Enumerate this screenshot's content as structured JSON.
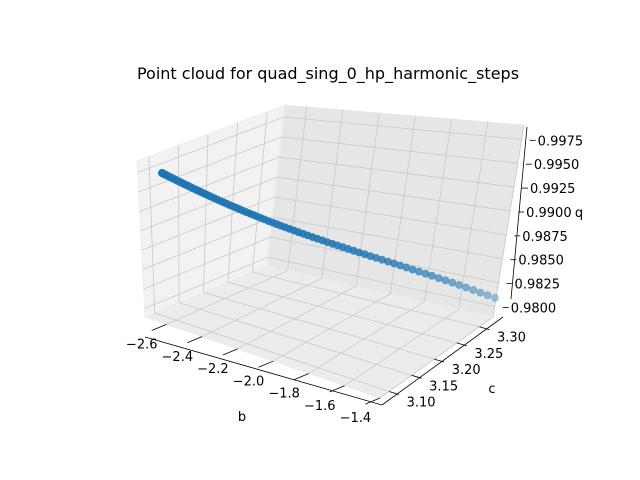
{
  "chart_data": {
    "type": "scatter",
    "projection": "3d",
    "title": "Point cloud for quad_sing_0_hp_harmonic_steps",
    "xlabel": "b",
    "ylabel": "c",
    "zlabel": "q",
    "x_ticks": [
      "−2.6",
      "−2.4",
      "−2.2",
      "−2.0",
      "−1.8",
      "−1.6",
      "−1.4"
    ],
    "y_ticks": [
      "3.10",
      "3.15",
      "3.20",
      "3.25",
      "3.30"
    ],
    "z_ticks": [
      "0.9800",
      "0.9825",
      "0.9850",
      "0.9875",
      "0.9900",
      "0.9925",
      "0.9950",
      "0.9975"
    ],
    "xlim": [
      -2.72,
      -1.4
    ],
    "ylim": [
      3.08,
      3.33
    ],
    "zlim": [
      0.9789,
      0.999
    ],
    "grid": true,
    "marker_color": "#1f77b4",
    "series": [
      {
        "points_start": {
          "b": -2.7,
          "c": 3.09,
          "q": 0.999
        },
        "points_end": {
          "b": -1.46,
          "c": 3.32,
          "q": 0.979
        },
        "count": 100
      }
    ]
  }
}
